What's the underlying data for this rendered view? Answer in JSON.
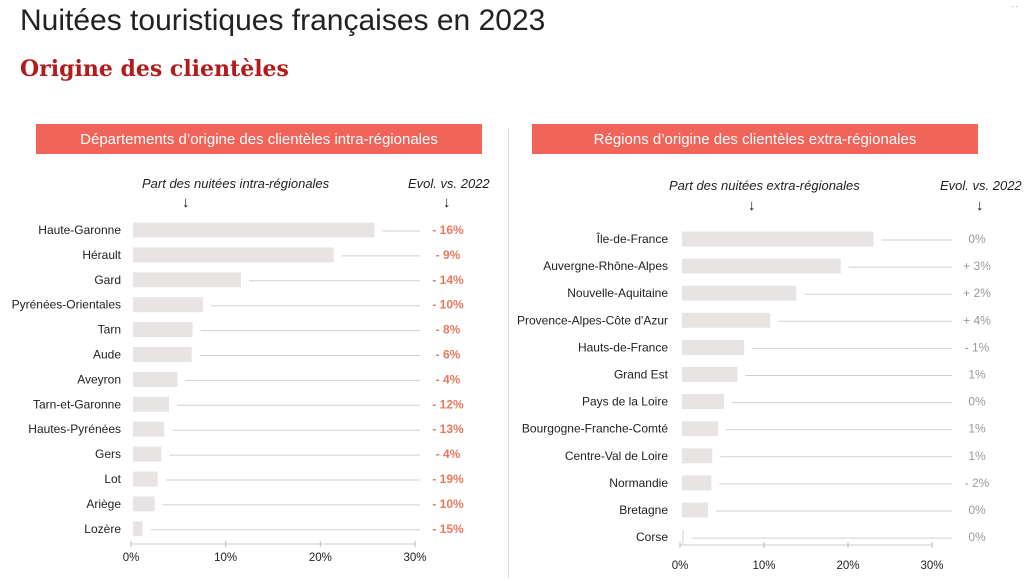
{
  "header": {
    "title": "Nuitées touristiques françaises en 2023",
    "subtitle": "Origine des clientèles",
    "corner_mark": "- -"
  },
  "left_panel": {
    "banner": "Départements d’origine des clientèles intra-régionales",
    "share_header": "Part des nuitées intra-régionales",
    "evol_header": "Evol. vs. 2022",
    "arrow_glyph": "↓"
  },
  "right_panel": {
    "banner": "Régions d’origine des clientèles extra-régionales",
    "share_header": "Part des nuitées extra-régionales",
    "evol_header": "Evol. vs. 2022",
    "arrow_glyph": "↓"
  },
  "colors": {
    "bar": "#e8e4e4",
    "leader": "#d0d0d0",
    "evol_negative": "#e9785f",
    "evol_neutral": "#9a9a9a",
    "banner": "#f0645a",
    "subtitle": "#b31b1b"
  },
  "chart_data": [
    {
      "type": "bar",
      "orientation": "horizontal",
      "title": "Départements d’origine des clientèles intra-régionales",
      "categories": [
        "Haute-Garonne",
        "Hérault",
        "Gard",
        "Pyrénées-Orientales",
        "Tarn",
        "Aude",
        "Aveyron",
        "Tarn-et-Garonne",
        "Hautes-Pyrénées",
        "Gers",
        "Lot",
        "Ariège",
        "Lozère"
      ],
      "values": [
        25.5,
        21.2,
        11.4,
        7.4,
        6.3,
        6.2,
        4.7,
        3.8,
        3.3,
        3.0,
        2.6,
        2.3,
        1.0
      ],
      "value_unit": "%",
      "evolution_labels": [
        "- 16%",
        "- 9%",
        "- 14%",
        "- 10%",
        "- 8%",
        "- 6%",
        "- 4%",
        "- 12%",
        "- 13%",
        "- 4%",
        "- 19%",
        "- 10%",
        "- 15%"
      ],
      "xlim": [
        0,
        30
      ],
      "xticks": [
        "0%",
        "10%",
        "20%",
        "30%"
      ],
      "grid": false,
      "legend": "none"
    },
    {
      "type": "bar",
      "orientation": "horizontal",
      "title": "Régions d’origine des clientèles extra-régionales",
      "categories": [
        "Île-de-France",
        "Auvergne-Rhône-Alpes",
        "Nouvelle-Aquitaine",
        "Provence-Alpes-Côte d'Azur",
        "Hauts-de-France",
        "Grand Est",
        "Pays de la Loire",
        "Bourgogne-Franche-Comté",
        "Centre-Val de Loire",
        "Normandie",
        "Bretagne",
        "Corse"
      ],
      "values": [
        22.8,
        18.9,
        13.6,
        10.5,
        7.4,
        6.6,
        5.0,
        4.3,
        3.6,
        3.5,
        3.1,
        0.2
      ],
      "value_unit": "%",
      "evolution_labels": [
        "0%",
        "+ 3%",
        "+ 2%",
        "+ 4%",
        "- 1%",
        "1%",
        "0%",
        "1%",
        "1%",
        "- 2%",
        "0%",
        "0%"
      ],
      "xlim": [
        0,
        30
      ],
      "xticks": [
        "0%",
        "10%",
        "20%",
        "30%"
      ],
      "grid": false,
      "legend": "none"
    }
  ]
}
